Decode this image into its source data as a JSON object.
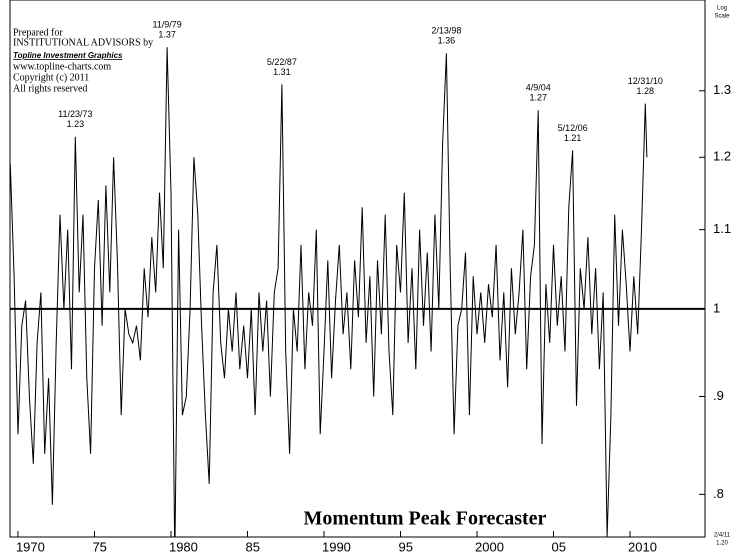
{
  "chart_data": {
    "type": "line",
    "title": "Momentum Peak Forecaster",
    "notes": [
      "Prepared for",
      "INSTITUTIONAL ADVISORS by",
      "Topline Investment Graphics",
      "www.topline-charts.com",
      "Copyright (c) 2011",
      "All rights reserved"
    ],
    "scale_label": [
      "Log",
      "Scale"
    ],
    "footer": [
      "2/4/11",
      "1.20"
    ],
    "log_scale": true,
    "color": "#000000",
    "reference_line": 1,
    "xlim": [
      1969.48,
      2014.9
    ],
    "xticks": [
      1970,
      {
        "value": 1975,
        "label": "75"
      },
      1980,
      {
        "value": 1985,
        "label": "85"
      },
      1990,
      {
        "value": 1995,
        "label": "95"
      },
      2000,
      {
        "value": 2005,
        "label": "05"
      },
      2010
    ],
    "ylim": [
      0.76,
      1.45
    ],
    "yticks": [
      {
        "value": 0.8,
        "label": ".8"
      },
      {
        "value": 0.9,
        "label": ".9"
      },
      1,
      1.1,
      1.2,
      1.3
    ],
    "annotations": [
      {
        "text": "11/23/73",
        "value": 1.23,
        "x": 1973.75
      },
      {
        "text": "11/9/79",
        "value": 1.37,
        "x": 1979.75
      },
      {
        "text": "5/22/87",
        "value": 1.31,
        "x": 1987.25
      },
      {
        "text": "2/13/98",
        "value": 1.36,
        "x": 1998.0
      },
      {
        "text": "4/9/04",
        "value": 1.27,
        "x": 2004.0
      },
      {
        "text": "5/12/06",
        "value": 1.21,
        "x": 2006.25
      },
      {
        "text": "12/31/10",
        "value": 1.28,
        "x": 2011.0
      }
    ],
    "x": [
      1969.5,
      1969.75,
      1970,
      1970.25,
      1970.5,
      1970.75,
      1971,
      1971.25,
      1971.5,
      1971.75,
      1972,
      1972.25,
      1972.5,
      1972.75,
      1973,
      1973.25,
      1973.5,
      1973.75,
      1974,
      1974.25,
      1974.5,
      1974.75,
      1975,
      1975.25,
      1975.5,
      1975.75,
      1976,
      1976.25,
      1976.5,
      1976.75,
      1977,
      1977.25,
      1977.5,
      1977.75,
      1978,
      1978.25,
      1978.5,
      1978.75,
      1979,
      1979.25,
      1979.5,
      1979.75,
      1980,
      1980.25,
      1980.5,
      1980.75,
      1981,
      1981.25,
      1981.5,
      1981.75,
      1982,
      1982.25,
      1982.5,
      1982.75,
      1983,
      1983.25,
      1983.5,
      1983.75,
      1984,
      1984.25,
      1984.5,
      1984.75,
      1985,
      1985.25,
      1985.5,
      1985.75,
      1986,
      1986.25,
      1986.5,
      1986.75,
      1987,
      1987.25,
      1987.5,
      1987.75,
      1988,
      1988.25,
      1988.5,
      1988.75,
      1989,
      1989.25,
      1989.5,
      1989.75,
      1990,
      1990.25,
      1990.5,
      1990.75,
      1991,
      1991.25,
      1991.5,
      1991.75,
      1992,
      1992.25,
      1992.5,
      1992.75,
      1993,
      1993.25,
      1993.5,
      1993.75,
      1994,
      1994.25,
      1994.5,
      1994.75,
      1995,
      1995.25,
      1995.5,
      1995.75,
      1996,
      1996.25,
      1996.5,
      1996.75,
      1997,
      1997.25,
      1997.5,
      1997.75,
      1998,
      1998.25,
      1998.5,
      1998.75,
      1999,
      1999.25,
      1999.5,
      1999.75,
      2000,
      2000.25,
      2000.5,
      2000.75,
      2001,
      2001.25,
      2001.5,
      2001.75,
      2002,
      2002.25,
      2002.5,
      2002.75,
      2003,
      2003.25,
      2003.5,
      2003.75,
      2004,
      2004.25,
      2004.5,
      2004.75,
      2005,
      2005.25,
      2005.5,
      2005.75,
      2006,
      2006.25,
      2006.5,
      2006.75,
      2007,
      2007.25,
      2007.5,
      2007.75,
      2008,
      2008.25,
      2008.5,
      2008.75,
      2009,
      2009.25,
      2009.5,
      2009.75,
      2010,
      2010.25,
      2010.5,
      2010.75,
      2011,
      2011.1
    ],
    "values": [
      1.19,
      1.04,
      0.86,
      0.98,
      1.01,
      0.9,
      0.83,
      0.96,
      1.02,
      0.84,
      0.92,
      0.79,
      0.96,
      1.12,
      1.0,
      1.1,
      0.93,
      1.23,
      1.02,
      1.12,
      0.92,
      0.84,
      1.05,
      1.14,
      0.98,
      1.16,
      1.02,
      1.2,
      1.06,
      0.88,
      1.0,
      0.97,
      0.96,
      0.98,
      0.94,
      1.05,
      0.99,
      1.09,
      1.02,
      1.15,
      1.05,
      1.37,
      1.15,
      0.74,
      1.1,
      0.88,
      0.9,
      1.0,
      1.2,
      1.12,
      0.98,
      0.88,
      0.81,
      1.02,
      1.08,
      0.96,
      0.92,
      1.0,
      0.95,
      1.02,
      0.93,
      0.98,
      0.92,
      1.0,
      0.88,
      1.02,
      0.95,
      1.01,
      0.9,
      1.02,
      1.05,
      1.31,
      0.95,
      0.84,
      1.0,
      0.95,
      1.08,
      0.93,
      1.02,
      0.98,
      1.1,
      0.86,
      0.95,
      1.06,
      0.92,
      1.01,
      1.08,
      0.97,
      1.02,
      0.93,
      1.06,
      0.99,
      1.13,
      0.96,
      1.04,
      0.9,
      1.06,
      0.97,
      1.12,
      0.95,
      0.88,
      1.08,
      1.02,
      1.15,
      0.96,
      1.05,
      0.93,
      1.1,
      0.98,
      1.07,
      0.95,
      1.12,
      1.0,
      1.22,
      1.36,
      1.05,
      0.86,
      0.98,
      1.0,
      1.07,
      0.88,
      1.04,
      0.97,
      1.02,
      0.96,
      1.03,
      0.99,
      1.08,
      0.94,
      1.02,
      0.91,
      1.05,
      0.97,
      1.02,
      1.1,
      0.93,
      1.04,
      1.08,
      1.27,
      0.85,
      1.03,
      0.96,
      1.08,
      0.98,
      1.04,
      0.95,
      1.13,
      1.21,
      0.89,
      1.05,
      1.0,
      1.09,
      0.97,
      1.05,
      0.93,
      1.02,
      0.76,
      0.88,
      1.12,
      0.98,
      1.1,
      1.03,
      0.95,
      1.04,
      0.97,
      1.1,
      1.28,
      1.2
    ]
  }
}
